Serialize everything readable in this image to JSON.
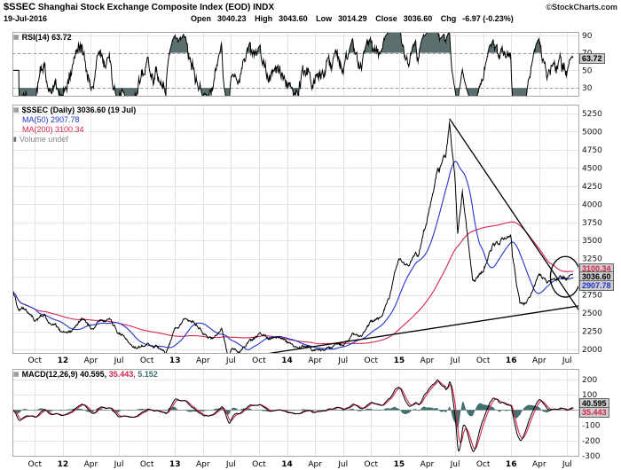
{
  "header": {
    "symbol": "$SSEC",
    "title": "Shanghai Stock Exchange Composite Index (EOD) INDX",
    "copyright": "©StockCharts.com",
    "date": "19-Jul-2016",
    "open_label": "Open",
    "open": "3040.23",
    "high_label": "High",
    "high": "3043.60",
    "low_label": "Low",
    "low": "3014.29",
    "close_label": "Close",
    "close": "3036.60",
    "chg_label": "Chg",
    "chg": "-6.97 (-0.23%)"
  },
  "icons": {
    "panel_icon": "▦",
    "volume_icon": "▮"
  },
  "rsi_panel": {
    "legend": "RSI(14) 63.72",
    "last_value": "63.72"
  },
  "main_panel": {
    "series_legend": "$SSEC (Daily) 3036.60 (19 Jul)",
    "ma50_legend": "MA(50) 2907.78",
    "ma200_legend": "MA(200) 3100.34",
    "volume_legend": "Volume undef",
    "last_close": "3036.60",
    "last_ma50": "2907.78",
    "last_ma200": "3100.34"
  },
  "macd_panel": {
    "legend_macd": "MACD(12,26,9) 40.595,",
    "legend_signal": "35.443,",
    "legend_hist": "5.152",
    "last_macd": "40.595",
    "last_signal": "35.443"
  },
  "chart_data": {
    "type": "line",
    "title": "$SSEC Shanghai Stock Exchange Composite Index (EOD) daily close, with RSI(14) and MACD(12,26,9)",
    "x_unit": "months since 2011-07-01 (fraction = day/30)",
    "price_anchors": [
      [
        0.63,
        2797
      ],
      [
        1.3,
        2526
      ],
      [
        2,
        2567
      ],
      [
        3,
        2365
      ],
      [
        4,
        2468
      ],
      [
        5,
        2333
      ],
      [
        6,
        2199
      ],
      [
        7,
        2293
      ],
      [
        8,
        2428
      ],
      [
        9,
        2263
      ],
      [
        10,
        2396
      ],
      [
        11,
        2372
      ],
      [
        12,
        2225
      ],
      [
        13,
        2103
      ],
      [
        14,
        2047
      ],
      [
        15,
        2086
      ],
      [
        16,
        2068
      ],
      [
        17,
        1980
      ],
      [
        18,
        2269
      ],
      [
        19,
        2385
      ],
      [
        20,
        2365
      ],
      [
        21,
        2237
      ],
      [
        22,
        2177
      ],
      [
        23,
        2301
      ],
      [
        23.8,
        1870
      ],
      [
        24,
        1979
      ],
      [
        25,
        1994
      ],
      [
        26,
        2098
      ],
      [
        27,
        2175
      ],
      [
        28,
        2141
      ],
      [
        29,
        2221
      ],
      [
        30,
        2116
      ],
      [
        31,
        2033
      ],
      [
        32,
        2056
      ],
      [
        33,
        2033
      ],
      [
        34,
        2026
      ],
      [
        35,
        2039
      ],
      [
        36,
        2048
      ],
      [
        37,
        2201
      ],
      [
        38,
        2217
      ],
      [
        39,
        2364
      ],
      [
        40,
        2420
      ],
      [
        41,
        2683
      ],
      [
        42,
        3235
      ],
      [
        43,
        3210
      ],
      [
        44,
        3310
      ],
      [
        45,
        3748
      ],
      [
        46,
        4442
      ],
      [
        47,
        4612
      ],
      [
        47.4,
        5166
      ],
      [
        48,
        4277
      ],
      [
        48.27,
        3507
      ],
      [
        48.77,
        4124
      ],
      [
        49.17,
        3664
      ],
      [
        49.87,
        2927
      ],
      [
        50.5,
        3005
      ],
      [
        51,
        3053
      ],
      [
        52,
        3383
      ],
      [
        53,
        3445
      ],
      [
        54,
        3539
      ],
      [
        54.13,
        3296
      ],
      [
        54.93,
        2655
      ],
      [
        56,
        2688
      ],
      [
        57,
        3004
      ],
      [
        58,
        2938
      ],
      [
        59,
        2917
      ],
      [
        60,
        2930
      ],
      [
        60.63,
        3036.6
      ]
    ],
    "indicators": {
      "rsi_period": 14,
      "ma": [
        50,
        200
      ],
      "macd": [
        12,
        26,
        9
      ]
    },
    "last": {
      "close": 3036.6,
      "ma50": 2907.78,
      "ma200": 3100.34,
      "rsi": 63.72,
      "macd": 40.595,
      "signal": 35.443,
      "hist": 5.152
    },
    "axes": {
      "price_ticks": [
        5250,
        5000,
        4750,
        4500,
        4250,
        4000,
        3750,
        3500,
        3250,
        3000,
        2750,
        2500,
        2250,
        2000
      ],
      "price_range": [
        1951,
        5372
      ],
      "rsi_ticks": [
        90,
        70,
        50,
        30
      ],
      "rsi_range": [
        21,
        94
      ],
      "rsi_bands": [
        70,
        30
      ],
      "macd_ticks": [
        200,
        100,
        -100,
        -200,
        -300
      ],
      "macd_range": [
        -300,
        270
      ],
      "x_labels": [
        {
          "t": 3,
          "label": "Oct"
        },
        {
          "t": 6,
          "label": "12",
          "bold": true
        },
        {
          "t": 9,
          "label": "Apr"
        },
        {
          "t": 12,
          "label": "Jul"
        },
        {
          "t": 15,
          "label": "Oct"
        },
        {
          "t": 18,
          "label": "13",
          "bold": true
        },
        {
          "t": 21,
          "label": "Apr"
        },
        {
          "t": 24,
          "label": "Jul"
        },
        {
          "t": 27,
          "label": "Oct"
        },
        {
          "t": 30,
          "label": "14",
          "bold": true
        },
        {
          "t": 33,
          "label": "Apr"
        },
        {
          "t": 36,
          "label": "Jul"
        },
        {
          "t": 39,
          "label": "Oct"
        },
        {
          "t": 42,
          "label": "15",
          "bold": true
        },
        {
          "t": 45,
          "label": "Apr"
        },
        {
          "t": 48,
          "label": "Jul"
        },
        {
          "t": 51,
          "label": "Oct"
        },
        {
          "t": 54,
          "label": "16",
          "bold": true
        },
        {
          "t": 57,
          "label": "Apr"
        },
        {
          "t": 60,
          "label": "Jul"
        }
      ]
    },
    "annotations": [
      {
        "type": "trendline",
        "x1": 47.4,
        "v1": 5178,
        "x2": 61.2,
        "v2": 2549
      },
      {
        "type": "trendline",
        "x1": 23.8,
        "v1": 1860,
        "x2": 61.2,
        "v2": 2598
      },
      {
        "type": "ellipse",
        "x": 59.8,
        "v": 3000,
        "rx": 1.6,
        "rv": 280
      }
    ],
    "colors": {
      "price": "#000000",
      "ma50": "#2233cc",
      "ma200": "#d9254f",
      "macd": "#000000",
      "signal": "#d9254f",
      "hist": "#3f6f6f",
      "rsi": "#000000",
      "rsi_fill": "#5c6f6f",
      "grid": "#e4e4e4",
      "band_dash": "#999999",
      "border": "#a8a8a8",
      "label_bg": "#cccccc"
    }
  }
}
